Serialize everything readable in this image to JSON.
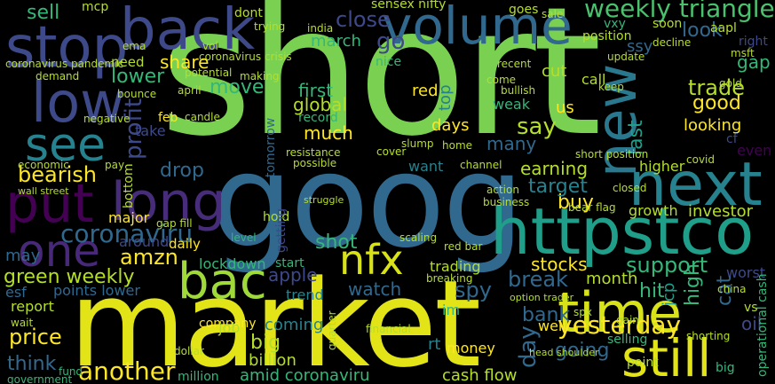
{
  "colors": {
    "background": "#000000",
    "palette": [
      "#440154",
      "#482878",
      "#3e4989",
      "#31688e",
      "#26828e",
      "#1f9e89",
      "#35b779",
      "#6ece58",
      "#b5de2b",
      "#fde725"
    ]
  },
  "words": [
    {
      "text": "short"
    },
    {
      "text": "goog"
    },
    {
      "text": "market"
    },
    {
      "text": "httpstco"
    },
    {
      "text": "volume"
    },
    {
      "text": "stop"
    },
    {
      "text": "back"
    },
    {
      "text": "low"
    },
    {
      "text": "see"
    },
    {
      "text": "put"
    },
    {
      "text": "long"
    },
    {
      "text": "one"
    },
    {
      "text": "next"
    },
    {
      "text": "new"
    },
    {
      "text": "time"
    },
    {
      "text": "still"
    },
    {
      "text": "nfx"
    },
    {
      "text": "bac"
    },
    {
      "text": "weekly triangle"
    },
    {
      "text": "go"
    },
    {
      "text": "close"
    },
    {
      "text": "sell"
    },
    {
      "text": "share"
    },
    {
      "text": "lower"
    },
    {
      "text": "need"
    },
    {
      "text": "profit"
    },
    {
      "text": "bearish"
    },
    {
      "text": "drop"
    },
    {
      "text": "coronaviru"
    },
    {
      "text": "amzn"
    },
    {
      "text": "green weekly"
    },
    {
      "text": "price"
    },
    {
      "text": "think"
    },
    {
      "text": "trade"
    },
    {
      "text": "good"
    },
    {
      "text": "look"
    },
    {
      "text": "gap"
    },
    {
      "text": "buy"
    },
    {
      "text": "target"
    },
    {
      "text": "earning"
    },
    {
      "text": "support"
    },
    {
      "text": "stocks"
    },
    {
      "text": "break"
    },
    {
      "text": "watch"
    },
    {
      "text": "spy"
    },
    {
      "text": "apple"
    },
    {
      "text": "shot"
    },
    {
      "text": "hit"
    },
    {
      "text": "bank"
    },
    {
      "text": "going"
    },
    {
      "text": "yesterday"
    },
    {
      "text": "day"
    },
    {
      "text": "coming"
    },
    {
      "text": "big"
    },
    {
      "text": "billion"
    },
    {
      "text": "amid coronaviru"
    },
    {
      "text": "another"
    },
    {
      "text": "move"
    },
    {
      "text": "say"
    },
    {
      "text": "many"
    },
    {
      "text": "much"
    },
    {
      "text": "first"
    },
    {
      "text": "global"
    },
    {
      "text": "red"
    },
    {
      "text": "days"
    },
    {
      "text": "want"
    },
    {
      "text": "trading"
    },
    {
      "text": "month"
    },
    {
      "text": "investor"
    },
    {
      "text": "growth"
    },
    {
      "text": "lockdown"
    },
    {
      "text": "around"
    },
    {
      "text": "daily"
    },
    {
      "text": "major"
    },
    {
      "text": "points lower"
    },
    {
      "text": "report"
    },
    {
      "text": "company"
    },
    {
      "text": "job"
    },
    {
      "text": "well"
    },
    {
      "text": "cash flow"
    },
    {
      "text": "million"
    },
    {
      "text": "money"
    },
    {
      "text": "worst"
    },
    {
      "text": "oil"
    },
    {
      "text": "cat"
    },
    {
      "text": "high"
    },
    {
      "text": "jcp"
    },
    {
      "text": "ssy"
    },
    {
      "text": "higher"
    },
    {
      "text": "looking"
    },
    {
      "text": "right"
    },
    {
      "text": "cf"
    },
    {
      "text": "even"
    },
    {
      "text": "last"
    },
    {
      "text": "us"
    },
    {
      "text": "take"
    },
    {
      "text": "feb"
    },
    {
      "text": "ema"
    },
    {
      "text": "march"
    },
    {
      "text": "top"
    },
    {
      "text": "weak"
    },
    {
      "text": "call"
    },
    {
      "text": "sensex nifty"
    },
    {
      "text": "goes"
    },
    {
      "text": "vxy"
    },
    {
      "text": "position"
    },
    {
      "text": "soon"
    },
    {
      "text": "cut"
    },
    {
      "text": "nice"
    },
    {
      "text": "coronavirus crisis"
    },
    {
      "text": "tomorrow"
    },
    {
      "text": "record"
    },
    {
      "text": "dont"
    },
    {
      "text": "mcp"
    },
    {
      "text": "may"
    },
    {
      "text": "im"
    },
    {
      "text": "rt"
    },
    {
      "text": "esf"
    },
    {
      "text": "wait"
    },
    {
      "text": "big"
    },
    {
      "text": "short position"
    },
    {
      "text": "bear flag"
    },
    {
      "text": "coronavirus pandemic"
    },
    {
      "text": "negative"
    },
    {
      "text": "candle"
    },
    {
      "text": "economic"
    },
    {
      "text": "fund"
    },
    {
      "text": "government"
    },
    {
      "text": "wall street"
    },
    {
      "text": "operational cash"
    },
    {
      "text": "gap fill"
    },
    {
      "text": "hold"
    },
    {
      "text": "level"
    },
    {
      "text": "start"
    },
    {
      "text": "trend"
    },
    {
      "text": "point"
    },
    {
      "text": "selling"
    },
    {
      "text": "shorting"
    },
    {
      "text": "home"
    },
    {
      "text": "resistance"
    },
    {
      "text": "possible"
    },
    {
      "text": "action"
    },
    {
      "text": "channel"
    },
    {
      "text": "business"
    },
    {
      "text": "covid"
    },
    {
      "text": "closed"
    },
    {
      "text": "china"
    },
    {
      "text": "vs"
    },
    {
      "text": "aapl"
    },
    {
      "text": "msft"
    },
    {
      "text": "decline"
    },
    {
      "text": "gold"
    },
    {
      "text": "demand"
    },
    {
      "text": "bounce"
    },
    {
      "text": "potential"
    },
    {
      "text": "cover"
    },
    {
      "text": "slump"
    },
    {
      "text": "bullish"
    },
    {
      "text": "recent"
    },
    {
      "text": "come"
    },
    {
      "text": "keep"
    },
    {
      "text": "update"
    },
    {
      "text": "sale"
    },
    {
      "text": "making"
    },
    {
      "text": "trying"
    },
    {
      "text": "getting"
    },
    {
      "text": "struggle"
    },
    {
      "text": "india"
    },
    {
      "text": "vol"
    },
    {
      "text": "april"
    },
    {
      "text": "bottom"
    },
    {
      "text": "pay"
    },
    {
      "text": "financial"
    },
    {
      "text": "dollar"
    },
    {
      "text": "quarter"
    },
    {
      "text": "scaling"
    },
    {
      "text": "breaking"
    },
    {
      "text": "option trader"
    },
    {
      "text": "head shoulder"
    },
    {
      "text": "gain"
    },
    {
      "text": "spx"
    },
    {
      "text": "red bar"
    }
  ]
}
